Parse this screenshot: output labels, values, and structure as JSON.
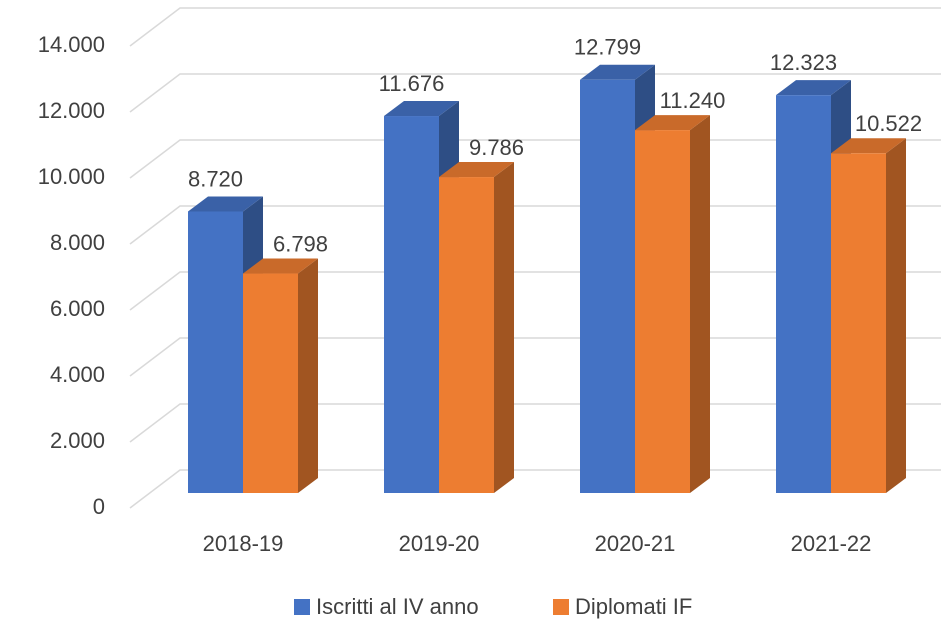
{
  "chart_data": {
    "type": "bar3d",
    "categories": [
      "2018-19",
      "2019-20",
      "2020-21",
      "2021-22"
    ],
    "series": [
      {
        "name": "Iscritti al IV anno",
        "color": "#4472c4",
        "values": [
          8720,
          11676,
          12799,
          12323
        ],
        "value_labels": [
          "8.720",
          "11.676",
          "12.799",
          "12.323"
        ]
      },
      {
        "name": "Diplomati IF",
        "color": "#ed7d31",
        "values": [
          6798,
          9786,
          11240,
          10522
        ],
        "value_labels": [
          "6.798",
          "9.786",
          "11.240",
          "10.522"
        ]
      }
    ],
    "ylim": [
      0,
      14000
    ],
    "yticks": [
      {
        "value": 0,
        "label": "0"
      },
      {
        "value": 2000,
        "label": "2.000"
      },
      {
        "value": 4000,
        "label": "4.000"
      },
      {
        "value": 6000,
        "label": "6.000"
      },
      {
        "value": 8000,
        "label": "8.000"
      },
      {
        "value": 10000,
        "label": "10.000"
      },
      {
        "value": 12000,
        "label": "12.000"
      },
      {
        "value": 14000,
        "label": "14.000"
      }
    ],
    "grid": true,
    "legend": "bottom"
  }
}
